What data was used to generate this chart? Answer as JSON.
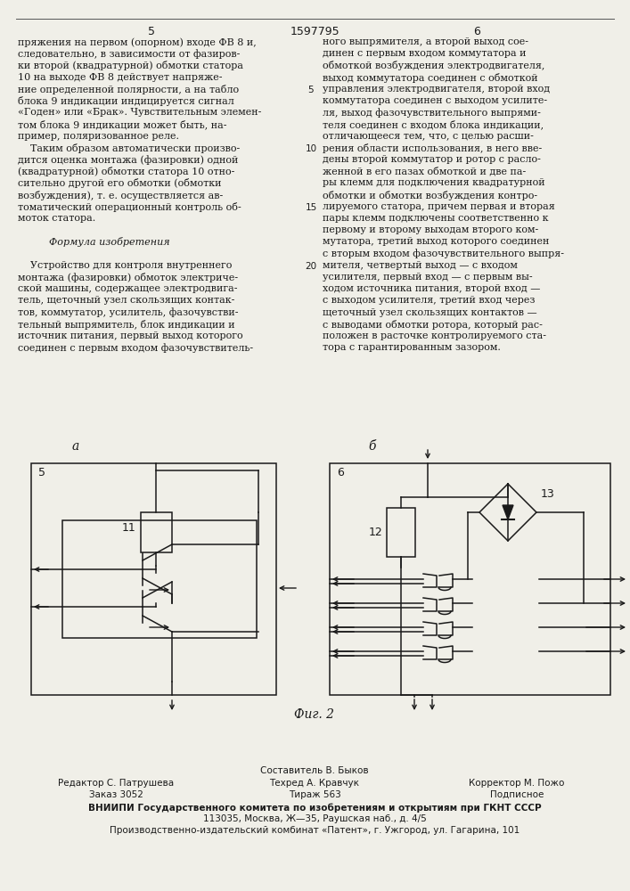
{
  "page_number_left": "5",
  "page_number_right": "6",
  "patent_number": "1597795",
  "bg_color": "#f0efe8",
  "text_color": "#1a1a1a",
  "line_numbers": [
    "5",
    "10",
    "15",
    "20"
  ],
  "left_column_text": [
    "пряжения на первом (опорном) входе ФВ 8 и,",
    "следовательно, в зависимости от фазиров-",
    "ки второй (квадратурной) обмотки статора",
    "10 на выходе ФВ 8 действует напряже-",
    "ние определенной полярности, а на табло",
    "блока 9 индикации индицируется сигнал",
    "«Годен» или «Брак». Чувствительным элемен-",
    "том блока 9 индикации может быть, на-",
    "пример, поляризованное реле.",
    "    Таким образом автоматически произво-",
    "дится оценка монтажа (фазировки) одной",
    "(квадратурной) обмотки статора 10 отно-",
    "сительно другой его обмотки (обмотки",
    "возбуждения), т. е. осуществляется ав-",
    "томатический операционный контроль об-",
    "моток статора.",
    "",
    "          Формула изобретения",
    "",
    "    Устройство для контроля внутреннего",
    "монтажа (фазировки) обмоток электриче-",
    "ской машины, содержащее электродвига-",
    "тель, щеточный узел скользящих контак-",
    "тов, коммутатор, усилитель, фазочувстви-",
    "тельный выпрямитель, блок индикации и",
    "источник питания, первый выход которого",
    "соединен с первым входом фазочувствитель-"
  ],
  "right_column_text": [
    "ного выпрямителя, а второй выход сое-",
    "динен с первым входом коммутатора и",
    "обмоткой возбуждения электродвигателя,",
    "выход коммутатора соединен с обмоткой",
    "управления электродвигателя, второй вход",
    "коммутатора соединен с выходом усилите-",
    "ля, выход фазочувствительного выпрями-",
    "теля соединен с входом блока индикации,",
    "отличающееся тем, что, с целью расши-",
    "рения области использования, в него вве-",
    "дены второй коммутатор и ротор с расло-",
    "женной в его пазах обмоткой и две па-",
    "ры клемм для подключения квадратурной",
    "обмотки и обмотки возбуждения контро-",
    "лируемого статора, причем первая и вторая",
    "пары клемм подключены соответственно к",
    "первому и второму выходам второго ком-",
    "мутатора, третий выход которого соединен",
    "с вторым входом фазочувствительного выпря-",
    "мителя, четвертый выход — с входом",
    "усилителя, первый вход — с первым вы-",
    "ходом источника питания, второй вход —",
    "с выходом усилителя, третий вход через",
    "щеточный узел скользящих контактов —",
    "с выводами обмотки ротора, который рас-",
    "положен в расточке контролируемого ста-",
    "тора с гарантированным зазором."
  ],
  "fig_label": "Фиг. 2",
  "diagram_a_label": "а",
  "diagram_b_label": "б",
  "component_11": "11",
  "component_12": "12",
  "component_13": "13",
  "component_5a": "5",
  "component_6b": "6",
  "footer_composer": "Составитель В. Быков",
  "footer_editor": "Редактор С. Патрушева",
  "footer_tech": "Техред А. Кравчук",
  "footer_corrector": "Корректор М. Пожо",
  "footer_order": "Заказ 3052",
  "footer_circulation": "Тираж 563",
  "footer_signed": "Подписное",
  "footer_vnipi": "ВНИИПИ Государственного комитета по изобретениям и открытиям при ГКНТ СССР",
  "footer_address": "113035, Москва, Ж—35, Раушская наб., д. 4/5",
  "footer_production": "Производственно-издательский комбинат «Патент», г. Ужгород, ул. Гагарина, 101"
}
